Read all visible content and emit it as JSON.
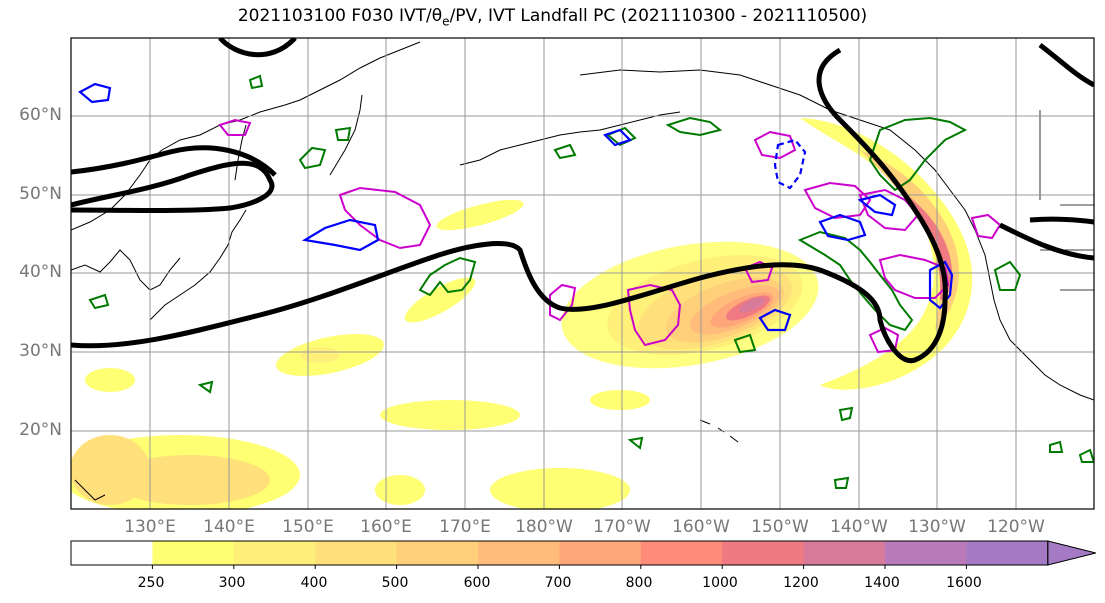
{
  "title": {
    "prefix": "2021103100 F030 IVT/θ",
    "sub": "e",
    "suffix": "/PV, IVT Landfall PC (2021110300 - 2021110500)"
  },
  "map": {
    "lat_labels": [
      "60°N",
      "50°N",
      "40°N",
      "30°N",
      "20°N"
    ],
    "lon_labels": [
      "130°E",
      "140°E",
      "150°E",
      "160°E",
      "170°E",
      "180°W",
      "170°W",
      "160°W",
      "150°W",
      "140°W",
      "130°W",
      "120°W"
    ]
  },
  "colorbar": {
    "levels": [
      "250",
      "300",
      "400",
      "500",
      "600",
      "700",
      "800",
      "1000",
      "1200",
      "1400",
      "1600"
    ],
    "colors": [
      "#ffffff",
      "#ffff73",
      "#fff07a",
      "#ffe07a",
      "#ffcf7a",
      "#ffbc7a",
      "#ffa67a",
      "#ff8c7a",
      "#f07a82",
      "#d87a9a",
      "#b87ab8",
      "#a57ac4"
    ]
  },
  "colors": {
    "jet": "#000000",
    "pv_contour": "#007a00",
    "theta_contour": "#cc00cc",
    "ivt_pc_contour": "#0000ff",
    "land_line": "#000000",
    "grid": "#999999"
  }
}
